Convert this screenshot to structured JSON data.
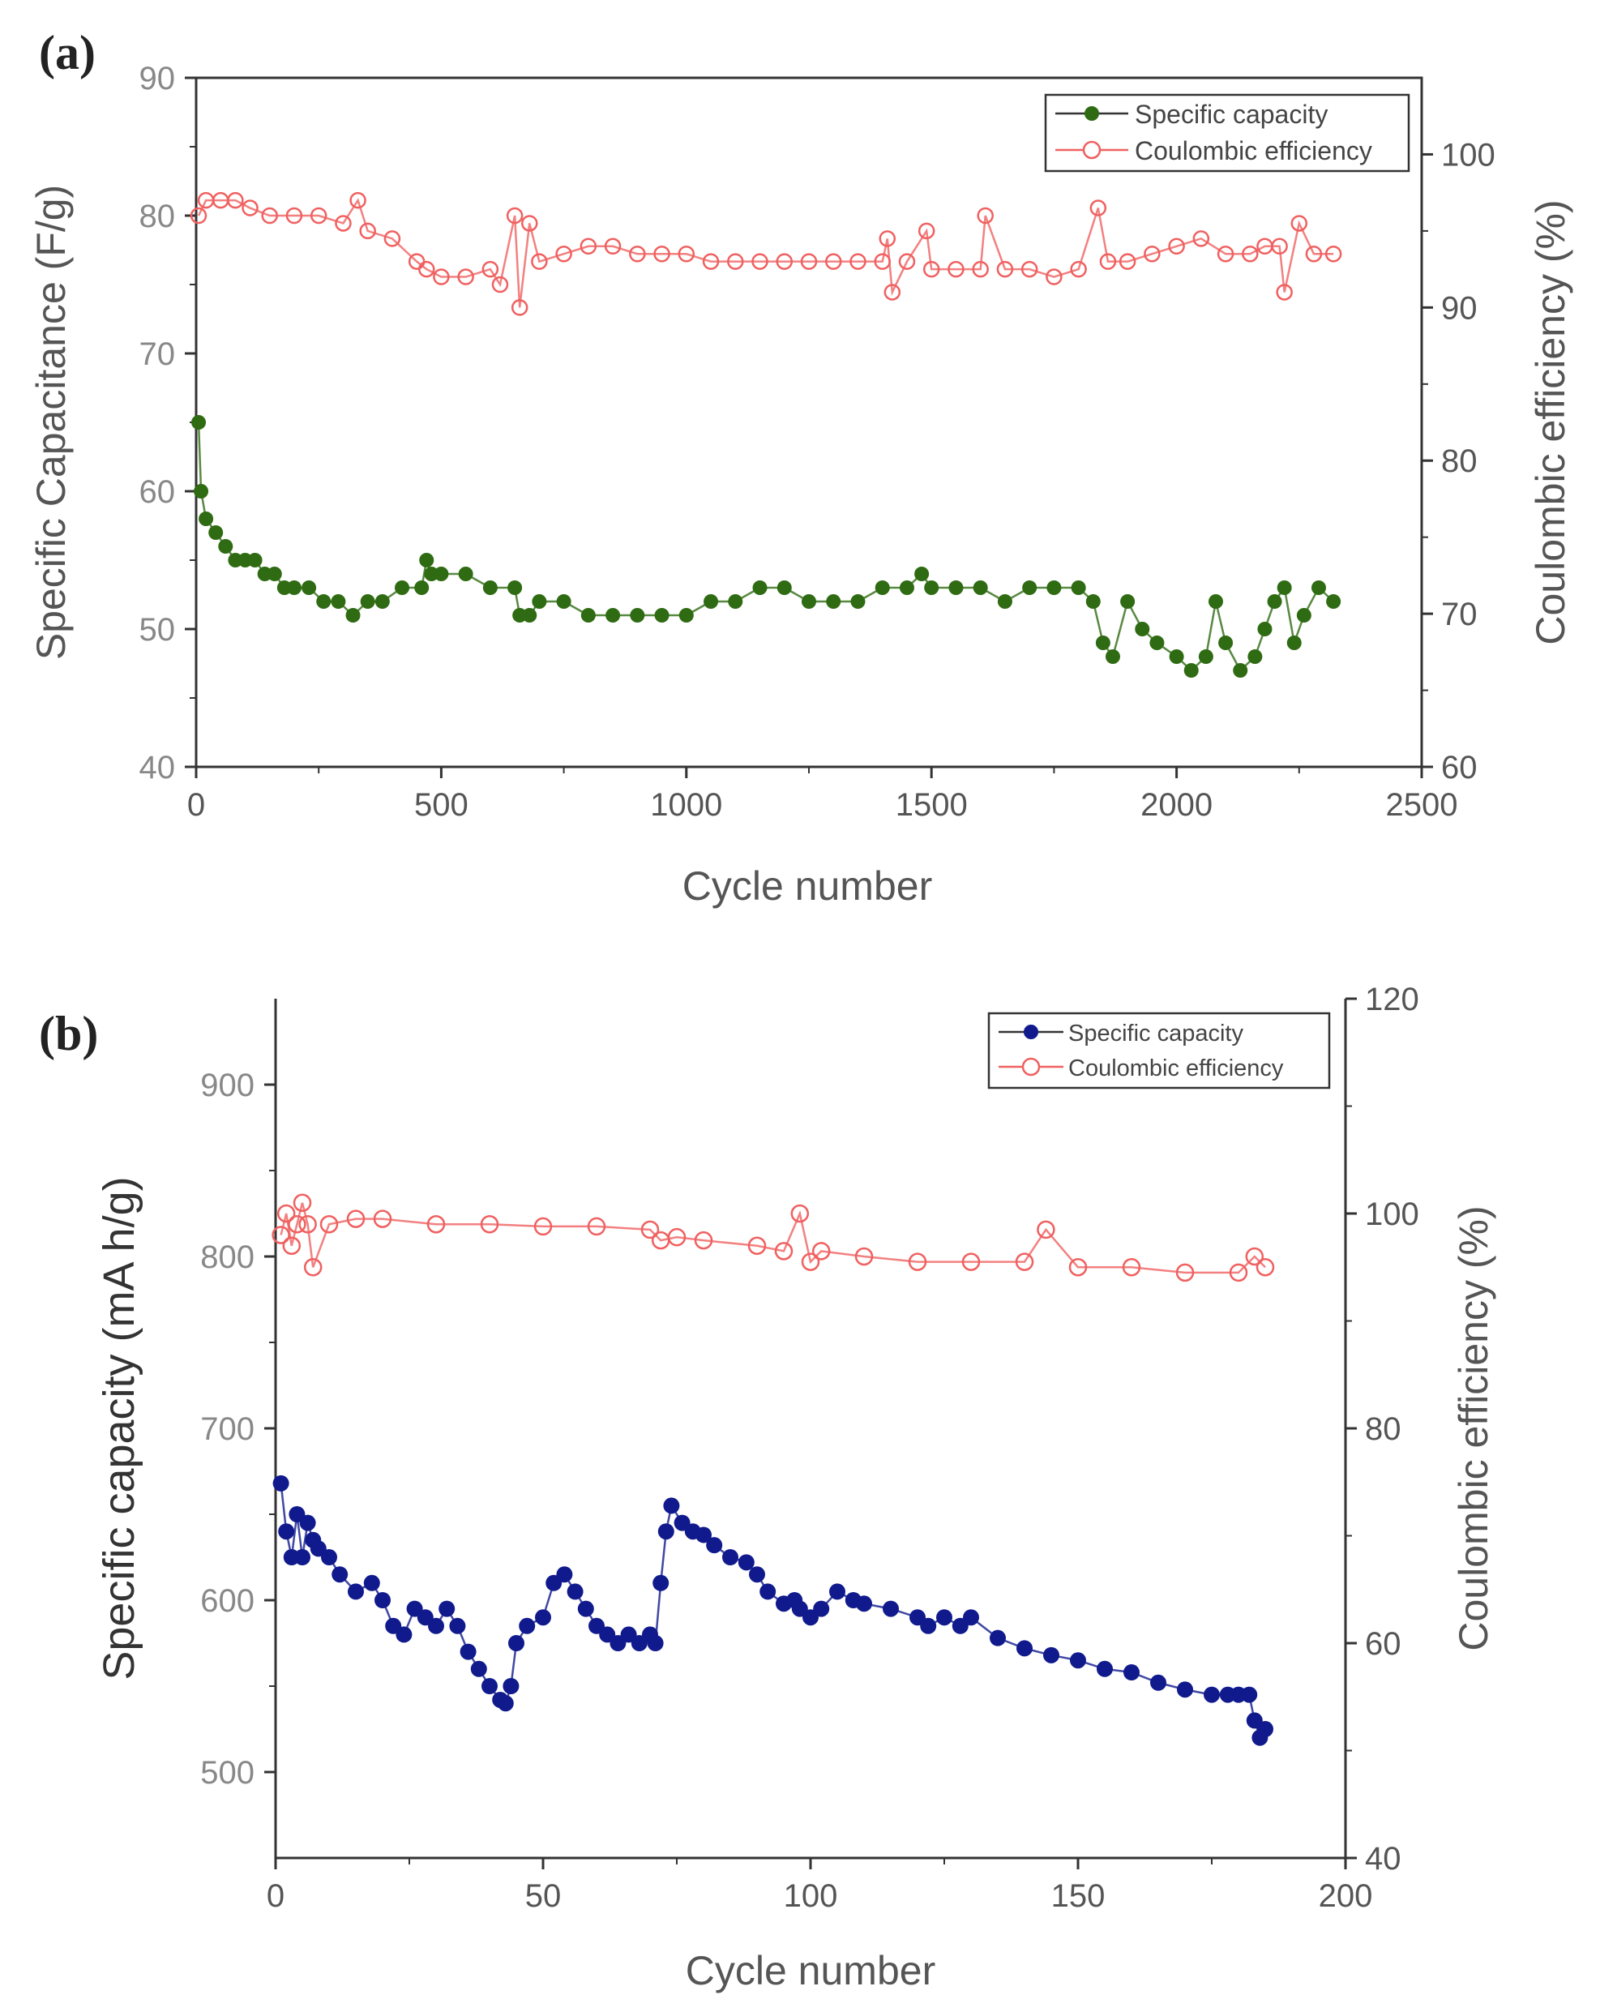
{
  "chart_data": [
    {
      "panel_label": "(a)",
      "type": "scatter",
      "xlabel": "Cycle number",
      "ylabel": "Specific Capacitance (F/g)",
      "y2label": "Coulombic efficiency (%)",
      "xlim": [
        0,
        2500
      ],
      "ylim": [
        40,
        90
      ],
      "y2lim": [
        60,
        105
      ],
      "xticks": [
        0,
        500,
        1000,
        1500,
        2000,
        2500
      ],
      "yticks": [
        40,
        50,
        60,
        70,
        80,
        90
      ],
      "y2ticks": [
        60,
        70,
        80,
        90,
        100
      ],
      "legend_position": "top-right",
      "series": [
        {
          "name": "Specific capacity",
          "axis": "left",
          "color": "#2e6b12",
          "marker": "filled-circle",
          "x": [
            5,
            10,
            20,
            40,
            60,
            80,
            100,
            120,
            140,
            160,
            180,
            200,
            230,
            260,
            290,
            320,
            350,
            380,
            420,
            460,
            470,
            480,
            500,
            550,
            600,
            650,
            660,
            680,
            700,
            750,
            800,
            850,
            900,
            950,
            1000,
            1050,
            1100,
            1150,
            1200,
            1250,
            1300,
            1350,
            1400,
            1450,
            1480,
            1500,
            1550,
            1600,
            1650,
            1700,
            1750,
            1800,
            1830,
            1850,
            1870,
            1900,
            1930,
            1960,
            2000,
            2030,
            2060,
            2080,
            2100,
            2130,
            2160,
            2180,
            2200,
            2220,
            2240,
            2260,
            2290,
            2320
          ],
          "y": [
            65,
            60,
            58,
            57,
            56,
            55,
            55,
            55,
            54,
            54,
            53,
            53,
            53,
            52,
            52,
            51,
            52,
            52,
            53,
            53,
            55,
            54,
            54,
            54,
            53,
            53,
            51,
            51,
            52,
            52,
            51,
            51,
            51,
            51,
            51,
            52,
            52,
            53,
            53,
            52,
            52,
            52,
            53,
            53,
            54,
            53,
            53,
            53,
            52,
            53,
            53,
            53,
            52,
            49,
            48,
            52,
            50,
            49,
            48,
            47,
            48,
            52,
            49,
            47,
            48,
            50,
            52,
            53,
            49,
            51,
            53,
            52
          ]
        },
        {
          "name": "Coulombic efficiency",
          "axis": "right",
          "color": "#f06060",
          "marker": "open-circle",
          "x": [
            5,
            20,
            50,
            80,
            110,
            150,
            200,
            250,
            300,
            330,
            350,
            400,
            450,
            470,
            500,
            550,
            600,
            620,
            650,
            660,
            680,
            700,
            750,
            800,
            850,
            900,
            950,
            1000,
            1050,
            1100,
            1150,
            1200,
            1250,
            1300,
            1350,
            1400,
            1410,
            1420,
            1450,
            1490,
            1500,
            1550,
            1600,
            1610,
            1650,
            1700,
            1750,
            1800,
            1840,
            1860,
            1900,
            1950,
            2000,
            2050,
            2100,
            2150,
            2180,
            2210,
            2220,
            2250,
            2280,
            2320
          ],
          "y": [
            96,
            97,
            97,
            97,
            96.5,
            96,
            96,
            96,
            95.5,
            97,
            95,
            94.5,
            93,
            92.5,
            92,
            92,
            92.5,
            91.5,
            96,
            90,
            95.5,
            93,
            93.5,
            94,
            94,
            93.5,
            93.5,
            93.5,
            93,
            93,
            93,
            93,
            93,
            93,
            93,
            93,
            94.5,
            91,
            93,
            95,
            92.5,
            92.5,
            92.5,
            96,
            92.5,
            92.5,
            92,
            92.5,
            96.5,
            93,
            93,
            93.5,
            94,
            94.5,
            93.5,
            93.5,
            94,
            94,
            91,
            95.5,
            93.5,
            93.5
          ]
        }
      ]
    },
    {
      "panel_label": "(b)",
      "type": "scatter",
      "xlabel": "Cycle number",
      "ylabel": "Specific capacity (mA h/g)",
      "y2label": "Coulombic efficiency (%)",
      "xlim": [
        0,
        200
      ],
      "ylim": [
        450,
        950
      ],
      "y2lim": [
        40,
        120
      ],
      "xticks": [
        0,
        50,
        100,
        150,
        200
      ],
      "yticks": [
        500,
        600,
        700,
        800,
        900
      ],
      "y2ticks": [
        40,
        60,
        80,
        100,
        120
      ],
      "legend_position": "top-right",
      "series": [
        {
          "name": "Specific capacity",
          "axis": "left",
          "color": "#101a8c",
          "marker": "filled-circle",
          "x": [
            1,
            2,
            3,
            4,
            5,
            6,
            7,
            8,
            10,
            12,
            15,
            18,
            20,
            22,
            24,
            26,
            28,
            30,
            32,
            34,
            36,
            38,
            40,
            42,
            43,
            44,
            45,
            47,
            50,
            52,
            54,
            56,
            58,
            60,
            62,
            64,
            66,
            68,
            70,
            71,
            72,
            73,
            74,
            76,
            78,
            80,
            82,
            85,
            88,
            90,
            92,
            95,
            97,
            98,
            100,
            102,
            105,
            108,
            110,
            115,
            120,
            122,
            125,
            128,
            130,
            135,
            140,
            145,
            150,
            155,
            160,
            165,
            170,
            175,
            178,
            180,
            182,
            183,
            184,
            185
          ],
          "y": [
            668,
            640,
            625,
            650,
            625,
            645,
            635,
            630,
            625,
            615,
            605,
            610,
            600,
            585,
            580,
            595,
            590,
            585,
            595,
            585,
            570,
            560,
            550,
            542,
            540,
            550,
            575,
            585,
            590,
            610,
            615,
            605,
            595,
            585,
            580,
            575,
            580,
            575,
            580,
            575,
            610,
            640,
            655,
            645,
            640,
            638,
            632,
            625,
            622,
            615,
            605,
            598,
            600,
            595,
            590,
            595,
            605,
            600,
            598,
            595,
            590,
            585,
            590,
            585,
            590,
            578,
            572,
            568,
            565,
            560,
            558,
            552,
            548,
            545,
            545,
            545,
            545,
            530,
            520,
            525
          ]
        },
        {
          "name": "Coulombic efficiency",
          "axis": "right",
          "color": "#f06060",
          "marker": "open-circle",
          "x": [
            1,
            2,
            3,
            4,
            5,
            6,
            7,
            10,
            15,
            20,
            30,
            40,
            50,
            60,
            70,
            72,
            75,
            80,
            90,
            95,
            98,
            100,
            102,
            110,
            120,
            130,
            140,
            144,
            150,
            160,
            170,
            180,
            183,
            185
          ],
          "y": [
            98,
            100,
            97,
            99,
            101,
            99,
            95,
            99,
            99.5,
            99.5,
            99,
            99,
            98.8,
            98.8,
            98.5,
            97.5,
            97.8,
            97.5,
            97,
            96.5,
            100,
            95.5,
            96.5,
            96,
            95.5,
            95.5,
            95.5,
            98.5,
            95,
            95,
            94.5,
            94.5,
            96,
            95
          ]
        }
      ]
    }
  ]
}
